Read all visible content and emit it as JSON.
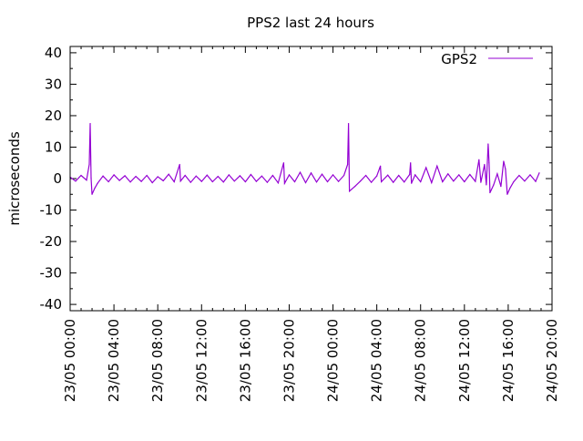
{
  "chart_data": {
    "type": "line",
    "title": "PPS2   last 24 hours",
    "xlabel": "",
    "ylabel": "microseconds",
    "ylim": [
      -42,
      42
    ],
    "xlim": [
      "23/05 00:00",
      "24/05 20:00"
    ],
    "yticks": [
      -40,
      -30,
      -20,
      -10,
      0,
      10,
      20,
      30,
      40
    ],
    "xticks": [
      "23/05 00:00",
      "23/05 04:00",
      "23/05 08:00",
      "23/05 12:00",
      "23/05 16:00",
      "23/05 20:00",
      "24/05 00:00",
      "24/05 04:00",
      "24/05 08:00",
      "24/05 12:00",
      "24/05 16:00",
      "24/05 20:00"
    ],
    "grid": false,
    "legend_position": "top-right",
    "series": [
      {
        "name": "GPS2",
        "color": "#9400d3",
        "points": [
          [
            "23/05 00:00",
            0.5
          ],
          [
            "23/05 00:30",
            -0.8
          ],
          [
            "23/05 01:00",
            1.0
          ],
          [
            "23/05 01:30",
            -0.5
          ],
          [
            "23/05 01:45",
            4.5
          ],
          [
            "23/05 01:50",
            17.5
          ],
          [
            "23/05 01:55",
            0.2
          ],
          [
            "23/05 02:00",
            -5.0
          ],
          [
            "23/05 02:15",
            -3.0
          ],
          [
            "23/05 02:30",
            -1.5
          ],
          [
            "23/05 03:00",
            0.8
          ],
          [
            "23/05 03:30",
            -1.0
          ],
          [
            "23/05 04:00",
            1.2
          ],
          [
            "23/05 04:30",
            -0.6
          ],
          [
            "23/05 05:00",
            0.9
          ],
          [
            "23/05 05:30",
            -1.1
          ],
          [
            "23/05 06:00",
            0.7
          ],
          [
            "23/05 06:30",
            -0.9
          ],
          [
            "23/05 07:00",
            1.0
          ],
          [
            "23/05 07:30",
            -1.3
          ],
          [
            "23/05 08:00",
            0.6
          ],
          [
            "23/05 08:30",
            -0.7
          ],
          [
            "23/05 09:00",
            1.4
          ],
          [
            "23/05 09:30",
            -1.0
          ],
          [
            "23/05 10:00",
            4.5
          ],
          [
            "23/05 10:05",
            -0.8
          ],
          [
            "23/05 10:30",
            1.0
          ],
          [
            "23/05 11:00",
            -1.2
          ],
          [
            "23/05 11:30",
            0.8
          ],
          [
            "23/05 12:00",
            -0.9
          ],
          [
            "23/05 12:30",
            1.1
          ],
          [
            "23/05 13:00",
            -1.0
          ],
          [
            "23/05 13:30",
            0.7
          ],
          [
            "23/05 14:00",
            -1.1
          ],
          [
            "23/05 14:30",
            1.2
          ],
          [
            "23/05 15:00",
            -0.8
          ],
          [
            "23/05 15:30",
            0.9
          ],
          [
            "23/05 16:00",
            -1.0
          ],
          [
            "23/05 16:30",
            1.3
          ],
          [
            "23/05 17:00",
            -0.9
          ],
          [
            "23/05 17:30",
            0.8
          ],
          [
            "23/05 18:00",
            -1.2
          ],
          [
            "23/05 18:30",
            1.0
          ],
          [
            "23/05 19:00",
            -1.4
          ],
          [
            "23/05 19:30",
            5.0
          ],
          [
            "23/05 19:35",
            -1.5
          ],
          [
            "23/05 20:00",
            1.2
          ],
          [
            "23/05 20:30",
            -1.0
          ],
          [
            "23/05 21:00",
            2.0
          ],
          [
            "23/05 21:30",
            -1.3
          ],
          [
            "23/05 22:00",
            1.8
          ],
          [
            "23/05 22:30",
            -1.1
          ],
          [
            "23/05 23:00",
            1.4
          ],
          [
            "23/05 23:30",
            -1.0
          ],
          [
            "24/05 00:00",
            1.2
          ],
          [
            "24/05 00:30",
            -0.9
          ],
          [
            "24/05 01:00",
            1.0
          ],
          [
            "24/05 01:20",
            4.5
          ],
          [
            "24/05 01:25",
            17.5
          ],
          [
            "24/05 01:30",
            -4.0
          ],
          [
            "24/05 02:00",
            -2.5
          ],
          [
            "24/05 02:30",
            -0.8
          ],
          [
            "24/05 03:00",
            1.0
          ],
          [
            "24/05 03:30",
            -1.2
          ],
          [
            "24/05 04:00",
            0.8
          ],
          [
            "24/05 04:20",
            4.0
          ],
          [
            "24/05 04:25",
            -1.0
          ],
          [
            "24/05 05:00",
            1.1
          ],
          [
            "24/05 05:30",
            -1.2
          ],
          [
            "24/05 06:00",
            1.0
          ],
          [
            "24/05 06:30",
            -1.1
          ],
          [
            "24/05 07:00",
            1.3
          ],
          [
            "24/05 07:05",
            5.0
          ],
          [
            "24/05 07:10",
            -1.5
          ],
          [
            "24/05 07:30",
            1.2
          ],
          [
            "24/05 08:00",
            -1.0
          ],
          [
            "24/05 08:30",
            3.5
          ],
          [
            "24/05 09:00",
            -1.3
          ],
          [
            "24/05 09:30",
            4.0
          ],
          [
            "24/05 10:00",
            -1.0
          ],
          [
            "24/05 10:30",
            1.5
          ],
          [
            "24/05 11:00",
            -0.8
          ],
          [
            "24/05 11:30",
            1.2
          ],
          [
            "24/05 12:00",
            -1.0
          ],
          [
            "24/05 12:30",
            1.3
          ],
          [
            "24/05 13:00",
            -0.9
          ],
          [
            "24/05 13:20",
            6.0
          ],
          [
            "24/05 13:30",
            -1.2
          ],
          [
            "24/05 13:50",
            4.5
          ],
          [
            "24/05 14:00",
            -2.0
          ],
          [
            "24/05 14:10",
            11.0
          ],
          [
            "24/05 14:15",
            5.0
          ],
          [
            "24/05 14:20",
            -4.5
          ],
          [
            "24/05 14:40",
            -2.0
          ],
          [
            "24/05 15:00",
            1.5
          ],
          [
            "24/05 15:20",
            -2.5
          ],
          [
            "24/05 15:35",
            5.5
          ],
          [
            "24/05 15:45",
            3.0
          ],
          [
            "24/05 15:55",
            -5.0
          ],
          [
            "24/05 16:10",
            -3.0
          ],
          [
            "24/05 16:30",
            -1.0
          ],
          [
            "24/05 17:00",
            1.0
          ],
          [
            "24/05 17:30",
            -0.8
          ],
          [
            "24/05 18:00",
            1.2
          ],
          [
            "24/05 18:30",
            -0.9
          ],
          [
            "24/05 18:50",
            1.8
          ]
        ]
      }
    ]
  }
}
